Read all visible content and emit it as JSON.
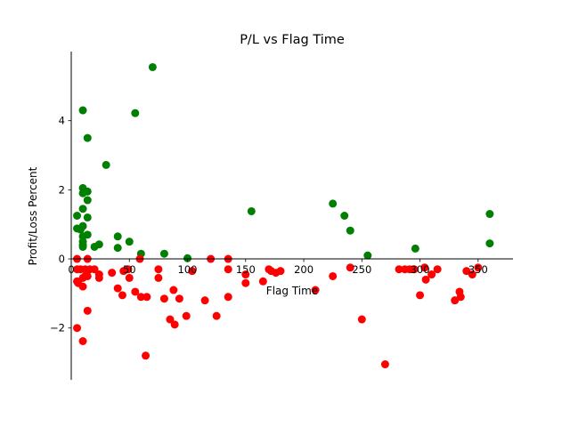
{
  "chart_data": {
    "type": "scatter",
    "title": "P/L vs Flag Time",
    "xlabel": "Flag Time",
    "ylabel": "Profit/Loss Percent",
    "xlim": [
      0,
      380
    ],
    "ylim": [
      -3.5,
      6.0
    ],
    "xticks": [
      0,
      50,
      100,
      150,
      200,
      250,
      300,
      350
    ],
    "yticks": [
      -2,
      0,
      2,
      4
    ],
    "xtick_labels": [
      "0",
      "50",
      "100",
      "150",
      "200",
      "250",
      "300",
      "350"
    ],
    "ytick_labels": [
      "−2",
      "0",
      "2",
      "4"
    ],
    "spines": "left and bottom at data zero (centered axes)",
    "grid": false,
    "legend": "none",
    "colors": {
      "profit": "#008000",
      "loss": "#ff0000"
    },
    "series": [
      {
        "color": "#008000",
        "points": [
          [
            5,
            1.25
          ],
          [
            5,
            0.88
          ],
          [
            8,
            0.85
          ],
          [
            10,
            4.3
          ],
          [
            10,
            2.05
          ],
          [
            10,
            1.9
          ],
          [
            10,
            1.45
          ],
          [
            10,
            0.95
          ],
          [
            10,
            0.65
          ],
          [
            10,
            0.5
          ],
          [
            10,
            0.4
          ],
          [
            10,
            0.35
          ],
          [
            14,
            3.5
          ],
          [
            14,
            1.95
          ],
          [
            14,
            1.7
          ],
          [
            14,
            1.2
          ],
          [
            14,
            0.7
          ],
          [
            20,
            0.35
          ],
          [
            24,
            0.42
          ],
          [
            30,
            2.72
          ],
          [
            40,
            0.65
          ],
          [
            40,
            0.32
          ],
          [
            50,
            0.5
          ],
          [
            55,
            4.22
          ],
          [
            60,
            0.15
          ],
          [
            70,
            5.55
          ],
          [
            80,
            0.15
          ],
          [
            100,
            0.02
          ],
          [
            155,
            1.38
          ],
          [
            225,
            1.6
          ],
          [
            235,
            1.25
          ],
          [
            240,
            0.82
          ],
          [
            255,
            0.1
          ],
          [
            296,
            0.3
          ],
          [
            360,
            1.3
          ],
          [
            360,
            0.45
          ]
        ]
      },
      {
        "color": "#ff0000",
        "points": [
          [
            5,
            0.0
          ],
          [
            5,
            -0.3
          ],
          [
            5,
            -0.65
          ],
          [
            5,
            -2.0
          ],
          [
            6,
            -0.7
          ],
          [
            8,
            -0.3
          ],
          [
            10,
            -0.55
          ],
          [
            10,
            -0.8
          ],
          [
            10,
            -2.38
          ],
          [
            12,
            -0.3
          ],
          [
            12,
            -0.5
          ],
          [
            14,
            0.0
          ],
          [
            14,
            -0.5
          ],
          [
            14,
            -1.5
          ],
          [
            16,
            -0.3
          ],
          [
            20,
            -0.3
          ],
          [
            24,
            -0.45
          ],
          [
            24,
            -0.55
          ],
          [
            35,
            -0.4
          ],
          [
            40,
            -0.85
          ],
          [
            44,
            -1.05
          ],
          [
            45,
            -0.35
          ],
          [
            49,
            -0.3
          ],
          [
            50,
            -0.55
          ],
          [
            55,
            -0.95
          ],
          [
            59,
            0.0
          ],
          [
            60,
            -1.1
          ],
          [
            64,
            -2.8
          ],
          [
            65,
            -1.1
          ],
          [
            75,
            -0.3
          ],
          [
            75,
            -0.55
          ],
          [
            80,
            -1.15
          ],
          [
            85,
            -1.75
          ],
          [
            88,
            -0.9
          ],
          [
            89,
            -1.9
          ],
          [
            93,
            -1.15
          ],
          [
            99,
            -1.65
          ],
          [
            104,
            -0.35
          ],
          [
            115,
            -1.2
          ],
          [
            120,
            0.0
          ],
          [
            125,
            -1.65
          ],
          [
            135,
            0.0
          ],
          [
            135,
            -0.3
          ],
          [
            135,
            -1.1
          ],
          [
            150,
            -0.45
          ],
          [
            150,
            -0.7
          ],
          [
            165,
            -0.65
          ],
          [
            170,
            -0.3
          ],
          [
            172,
            -0.35
          ],
          [
            176,
            -0.4
          ],
          [
            180,
            -0.35
          ],
          [
            210,
            -0.9
          ],
          [
            225,
            -0.5
          ],
          [
            240,
            -0.25
          ],
          [
            250,
            -1.75
          ],
          [
            270,
            -3.05
          ],
          [
            282,
            -0.3
          ],
          [
            287,
            -0.3
          ],
          [
            291,
            -0.3
          ],
          [
            295,
            -0.3
          ],
          [
            300,
            -1.05
          ],
          [
            304,
            -0.25
          ],
          [
            305,
            -0.6
          ],
          [
            310,
            -0.45
          ],
          [
            315,
            -0.3
          ],
          [
            330,
            -1.2
          ],
          [
            334,
            -0.95
          ],
          [
            335,
            -1.1
          ],
          [
            340,
            -0.35
          ],
          [
            345,
            -0.45
          ],
          [
            350,
            -0.25
          ]
        ]
      }
    ]
  }
}
